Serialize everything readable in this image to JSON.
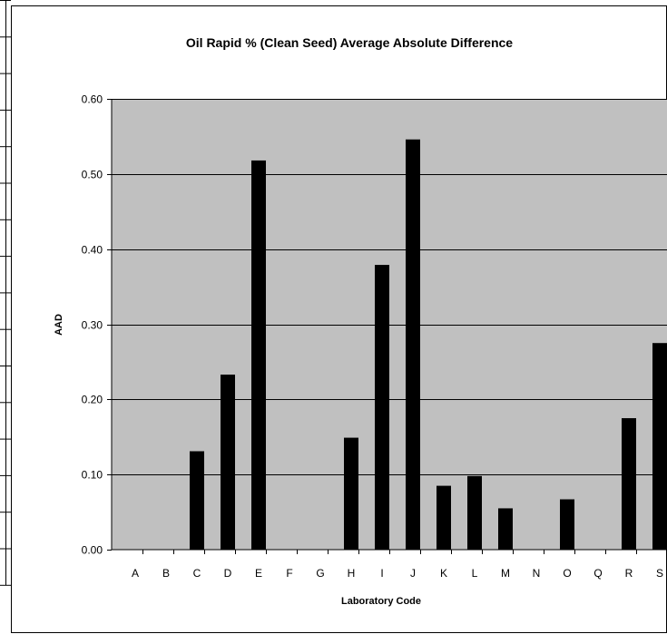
{
  "chart_data": {
    "type": "bar",
    "title": "Oil Rapid % (Clean Seed) Average Absolute Difference",
    "xlabel": "Laboratory Code",
    "ylabel": "AAD",
    "categories": [
      "A",
      "B",
      "C",
      "D",
      "E",
      "F",
      "G",
      "H",
      "I",
      "J",
      "K",
      "L",
      "M",
      "N",
      "O",
      "Q",
      "R",
      "S"
    ],
    "values": [
      0,
      0,
      0.131,
      0.233,
      0.518,
      0,
      0,
      0.149,
      0.379,
      0.546,
      0.085,
      0.098,
      0.055,
      0,
      0.067,
      0,
      0.175,
      0.275
    ],
    "ylim": [
      0,
      0.6
    ],
    "yticks": [
      "0.00",
      "0.10",
      "0.20",
      "0.30",
      "0.40",
      "0.50",
      "0.60"
    ],
    "grid": true,
    "colors": {
      "plot_background": "#c0c0c0",
      "bar": "#000000",
      "gridline": "#000000"
    }
  }
}
